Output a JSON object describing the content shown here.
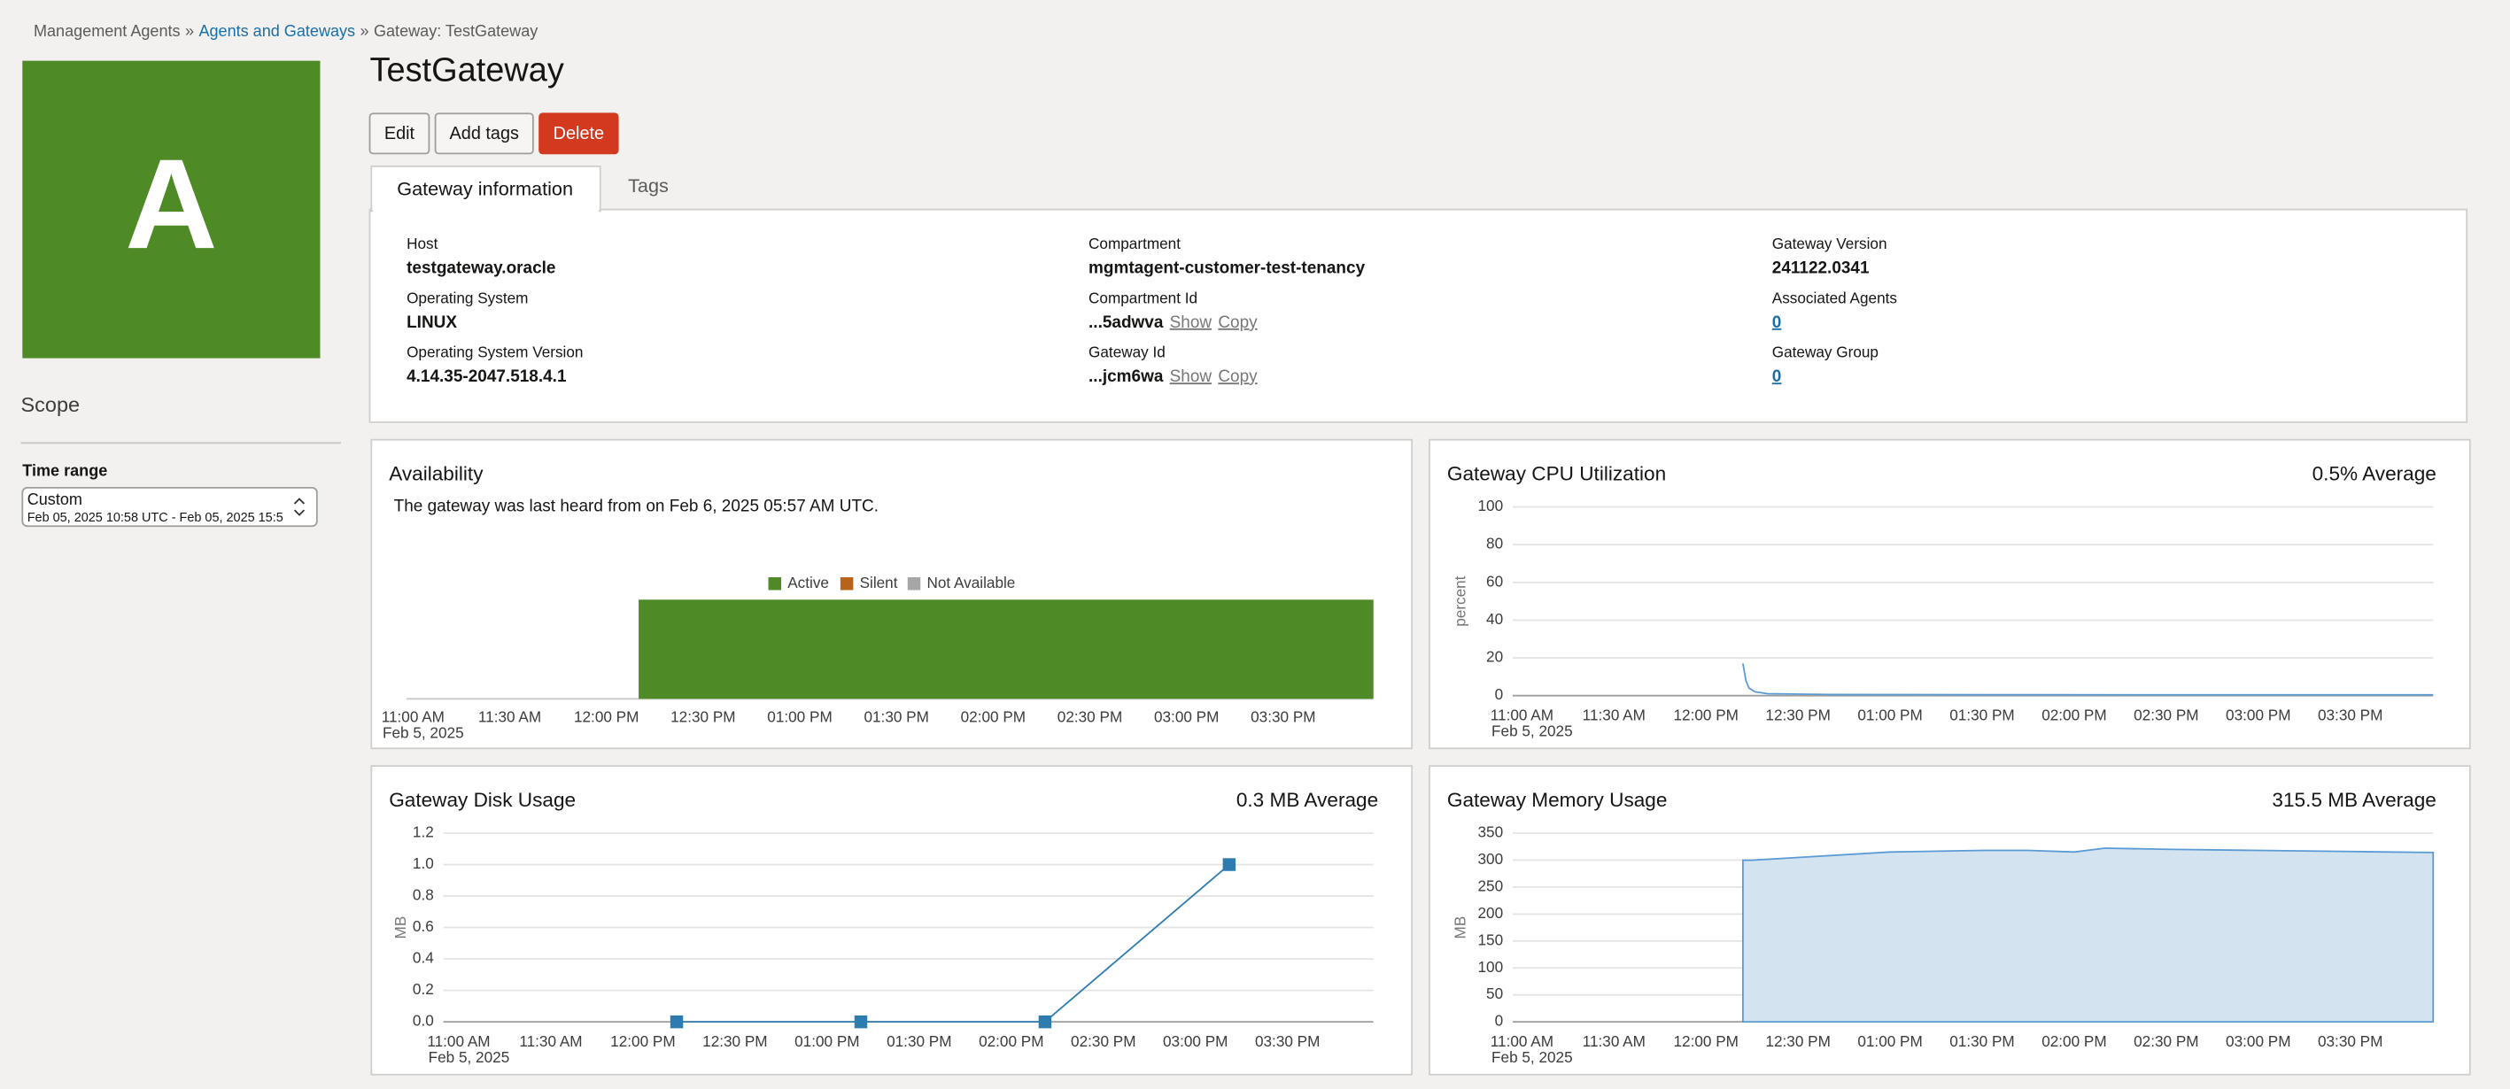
{
  "breadcrumb": [
    "Management Agents",
    "Agents and Gateways",
    "Gateway: TestGateway"
  ],
  "breadcrumb_separator": "»",
  "avatar_letter": "A",
  "title": "TestGateway",
  "buttons": [
    "Edit",
    "Add tags",
    "Delete"
  ],
  "tabs": [
    "Gateway information",
    "Tags"
  ],
  "scope": "Scope",
  "time_range": {
    "label": "Time range",
    "value": "Custom",
    "detail": "Feb 05, 2025 10:58 UTC - Feb 05, 2025 15:5"
  },
  "info_actions": [
    "Show",
    "Copy"
  ],
  "info": [
    [
      {
        "label": "Host",
        "value": "testgateway.oracle"
      },
      {
        "label": "Operating System",
        "value": "LINUX"
      },
      {
        "label": "Operating System Version",
        "value": "4.14.35-2047.518.4.1"
      }
    ],
    [
      {
        "label": "Compartment",
        "value": "mgmtagent-customer-test-tenancy"
      },
      {
        "label": "Compartment Id",
        "value": "...5adwva",
        "actions": true
      },
      {
        "label": "Gateway Id",
        "value": "...jcm6wa",
        "actions": true
      }
    ],
    [
      {
        "label": "Gateway Version",
        "value": "241122.0341"
      },
      {
        "label": "Associated Agents",
        "value": "0",
        "link": true
      },
      {
        "label": "Gateway Group",
        "value": "0",
        "link": true
      }
    ]
  ],
  "chart_data": [
    {
      "type": "timeline",
      "title": "Availability",
      "note": "The gateway was last heard from on Feb 6, 2025 05:57 AM UTC.",
      "xlim": [
        "10:58 AM",
        "03:58 PM"
      ],
      "xticks": [
        "11:00 AM",
        "11:30 AM",
        "12:00 PM",
        "12:30 PM",
        "01:00 PM",
        "01:30 PM",
        "02:00 PM",
        "02:30 PM",
        "03:00 PM",
        "03:30 PM"
      ],
      "xticks_sublabel": "Feb 5, 2025",
      "series": [
        {
          "name": "Active",
          "color": "#4e8a25",
          "x_start": [
            "12:10 PM"
          ],
          "x_end": [
            "03:58 PM"
          ]
        },
        {
          "name": "Silent",
          "color": "#b8631a",
          "x_start": [],
          "x_end": []
        },
        {
          "name": "Not Available",
          "color": "#a6a6a6",
          "x_start": [],
          "x_end": []
        }
      ]
    },
    {
      "type": "line",
      "title": "Gateway CPU Utilization",
      "summary": "0.5% Average",
      "ylabel": "percent",
      "xlim": [
        "10:57 AM",
        "03:57 PM"
      ],
      "xticks": [
        "11:00 AM",
        "11:30 AM",
        "12:00 PM",
        "12:30 PM",
        "01:00 PM",
        "01:30 PM",
        "02:00 PM",
        "02:30 PM",
        "03:00 PM",
        "03:30 PM"
      ],
      "xticks_sublabel": "Feb 5, 2025",
      "ylim": [
        0,
        100
      ],
      "yticks": [
        0,
        20,
        40,
        60,
        80,
        100
      ],
      "grid": true,
      "color": "#5b9bd5",
      "markers": false,
      "x": [
        "12:12 PM",
        "12:13 PM",
        "12:14 PM",
        "12:16 PM",
        "12:20 PM",
        "12:40 PM",
        "01:30 PM",
        "02:30 PM",
        "03:30 PM",
        "03:57 PM"
      ],
      "values": [
        17,
        8,
        4,
        2,
        1,
        0.6,
        0.5,
        0.4,
        0.4,
        0.4
      ]
    },
    {
      "type": "line",
      "title": "Gateway Disk Usage",
      "summary": "0.3 MB Average",
      "ylabel": "MB",
      "xlim": [
        "10:55 AM",
        "03:58 PM"
      ],
      "xticks": [
        "11:00 AM",
        "11:30 AM",
        "12:00 PM",
        "12:30 PM",
        "01:00 PM",
        "01:30 PM",
        "02:00 PM",
        "02:30 PM",
        "03:00 PM",
        "03:30 PM"
      ],
      "xticks_sublabel": "Feb 5, 2025",
      "ylim": [
        0,
        1.2
      ],
      "yticks": [
        {
          "value": 0,
          "label": "0.0"
        },
        0.2,
        0.4,
        0.6,
        0.8,
        {
          "value": 1,
          "label": "1.0"
        },
        1.2
      ],
      "grid": true,
      "color": "#2e7bb0",
      "markers": true,
      "x": [
        "12:11 PM",
        "01:11 PM",
        "02:11 PM",
        "03:11 PM"
      ],
      "values": [
        0,
        0,
        0,
        1
      ]
    },
    {
      "type": "area",
      "title": "Gateway Memory Usage",
      "summary": "315.5 MB Average",
      "ylabel": "MB",
      "xlim": [
        "10:57 AM",
        "03:57 PM"
      ],
      "xticks": [
        "11:00 AM",
        "11:30 AM",
        "12:00 PM",
        "12:30 PM",
        "01:00 PM",
        "01:30 PM",
        "02:00 PM",
        "02:30 PM",
        "03:00 PM",
        "03:30 PM"
      ],
      "xticks_sublabel": "Feb 5, 2025",
      "ylim": [
        0,
        350
      ],
      "yticks": [
        0,
        50,
        100,
        150,
        200,
        250,
        300,
        350
      ],
      "grid": true,
      "color": "#5b9bd5",
      "x": [
        "12:12 PM",
        "12:15 PM",
        "12:30 PM",
        "01:00 PM",
        "01:30 PM",
        "01:45 PM",
        "02:00 PM",
        "02:10 PM",
        "02:30 PM",
        "03:00 PM",
        "03:30 PM",
        "03:57 PM"
      ],
      "values": [
        300,
        300,
        305,
        315,
        318,
        318,
        315,
        322,
        320,
        318,
        316,
        314
      ]
    }
  ]
}
